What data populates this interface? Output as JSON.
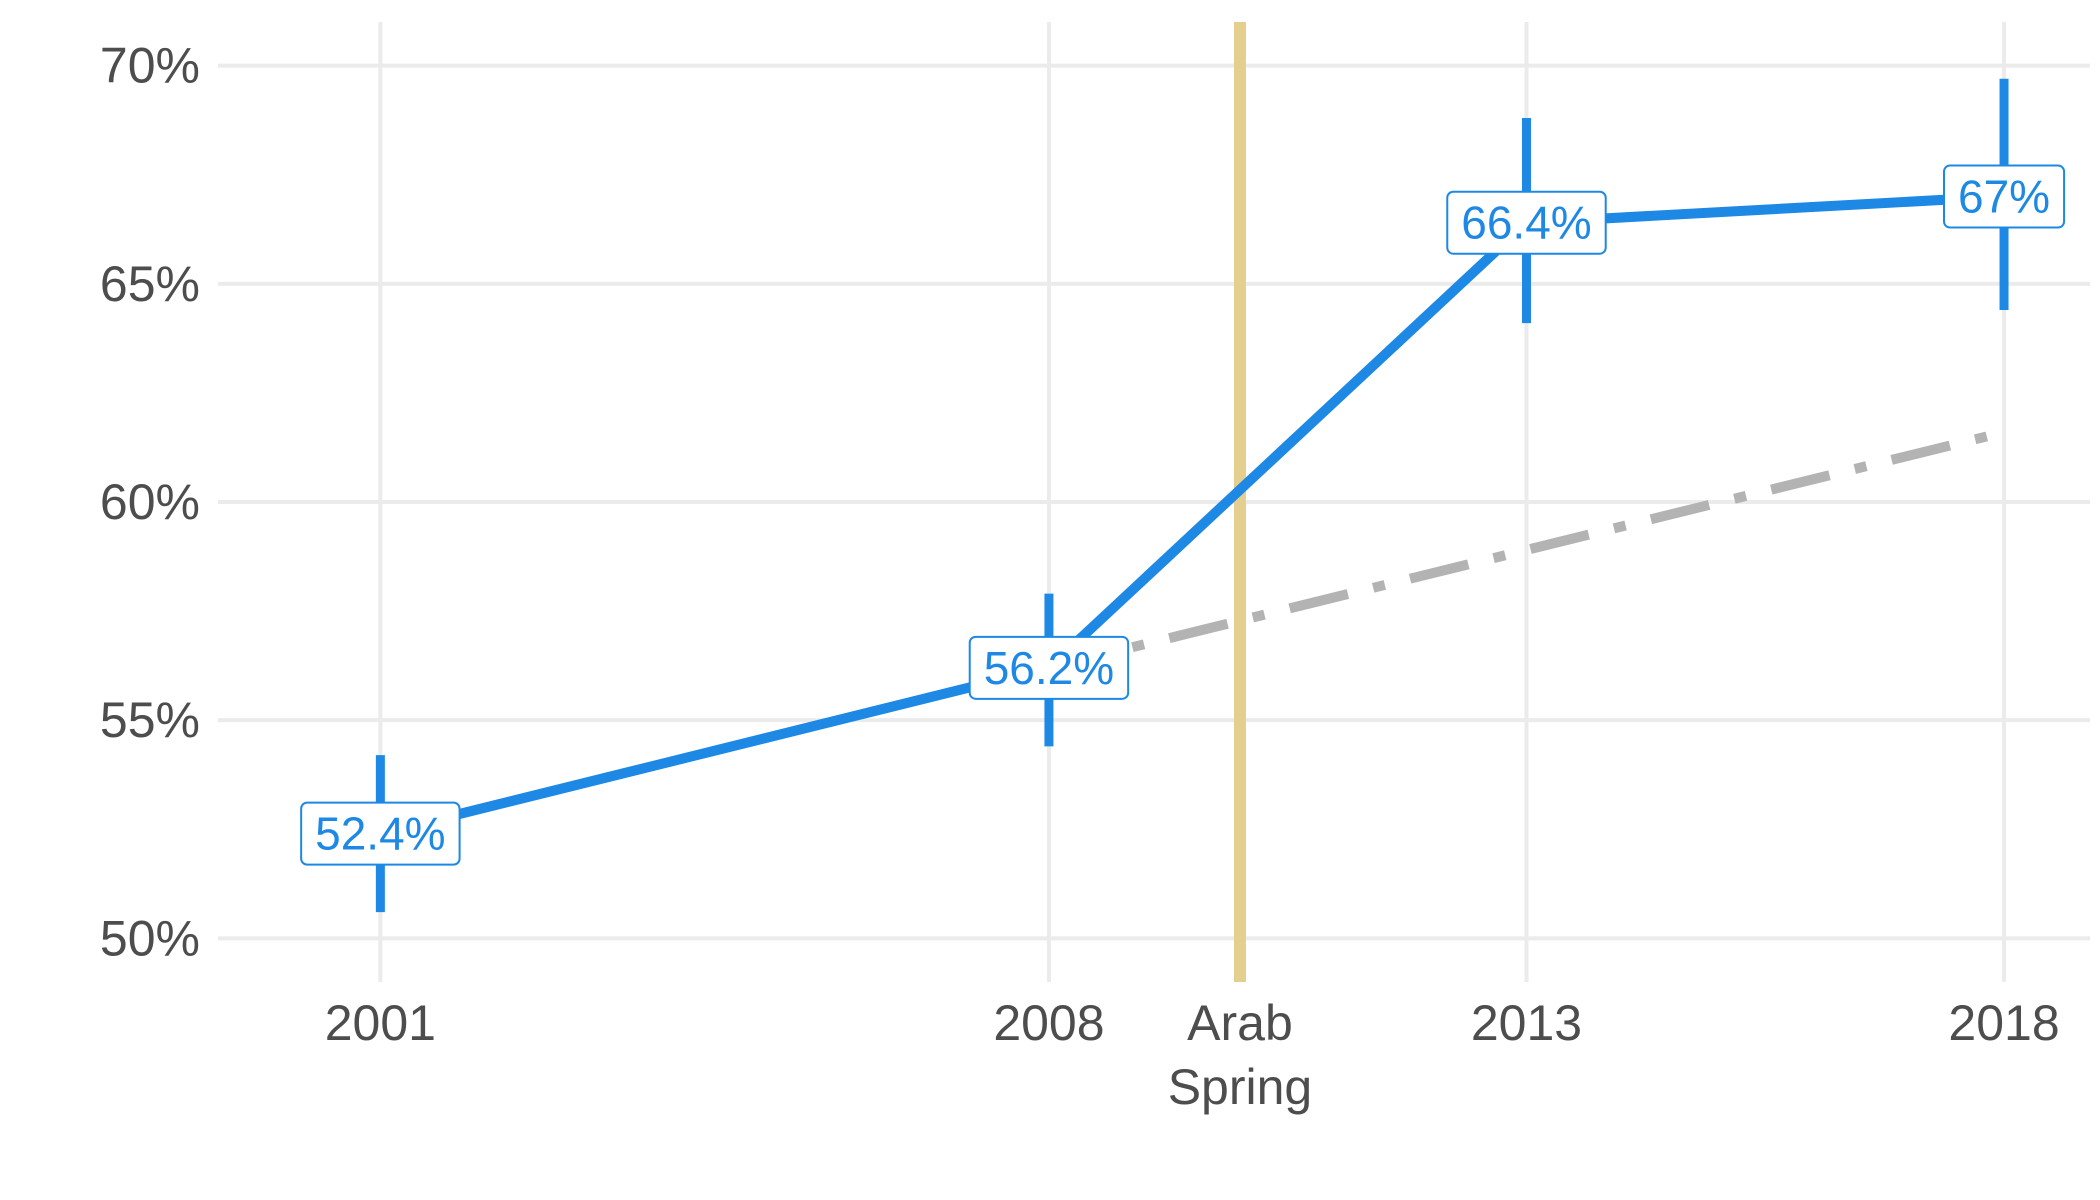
{
  "chart_data": {
    "type": "line",
    "title": "",
    "xlabel": "",
    "ylabel": "",
    "x": [
      2001,
      2008,
      2013,
      2018
    ],
    "x_tick_labels": [
      "2001",
      "2008",
      "2013",
      "2018"
    ],
    "xlim": [
      1999.3,
      2018.9
    ],
    "ylim": [
      49.0,
      71.0
    ],
    "y_ticks": [
      50,
      55,
      60,
      65,
      70
    ],
    "y_tick_labels": [
      "50%",
      "55%",
      "60%",
      "65%",
      "70%"
    ],
    "grid": true,
    "legend": "none",
    "series": [
      {
        "values": [
          52.4,
          56.2,
          66.4,
          67.0
        ],
        "error_low": [
          50.6,
          54.4,
          64.1,
          64.4
        ],
        "error_high": [
          54.2,
          57.9,
          68.8,
          69.7
        ],
        "data_labels": [
          "52.4%",
          "56.2%",
          "66.4%",
          "67%"
        ],
        "color": "#1e88e5",
        "style": "solid"
      },
      {
        "x": [
          2008,
          2018
        ],
        "values": [
          56.2,
          61.6
        ],
        "color": "#b3b3b3",
        "style": "dash-dot"
      }
    ],
    "annotations": [
      {
        "type": "vline",
        "x": 2010,
        "label_lines": [
          "Arab",
          "Spring"
        ],
        "color": "#e5cf8f"
      }
    ]
  }
}
